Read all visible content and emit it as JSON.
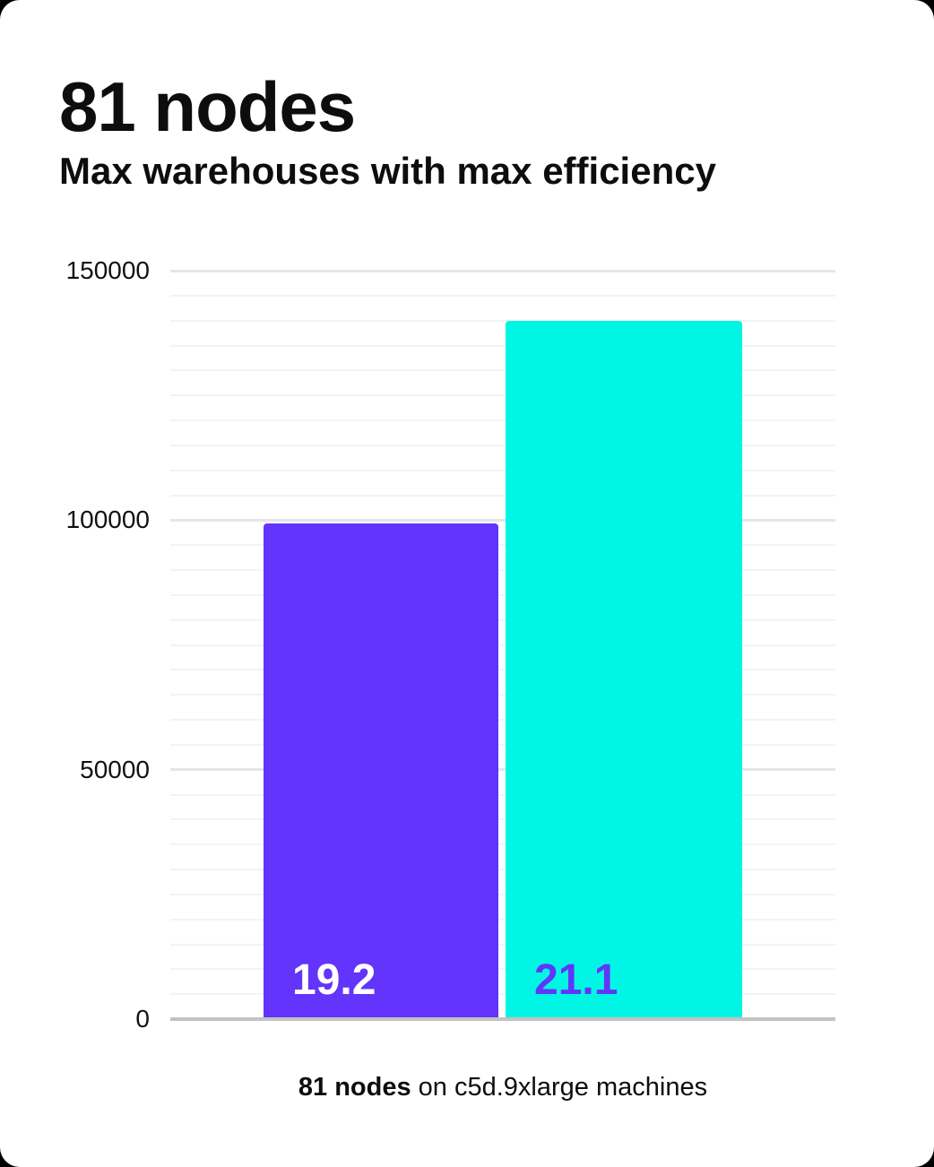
{
  "header": {
    "title": "81 nodes",
    "subtitle": "Max warehouses with max efficiency"
  },
  "caption": {
    "highlight": "81 nodes",
    "rest": " on c5d.9xlarge machines"
  },
  "chart_data": {
    "type": "bar",
    "title": "81 nodes",
    "subtitle": "Max warehouses with max efficiency",
    "categories": [
      "19.2",
      "21.1"
    ],
    "values": [
      99400,
      140000
    ],
    "bars": [
      {
        "label": "19.2",
        "value": 99400,
        "color": "#6334fb",
        "label_color": "#ffffff"
      },
      {
        "label": "21.1",
        "value": 140000,
        "color": "#00f6e4",
        "label_color": "#6334fb"
      }
    ],
    "xlabel": "",
    "ylabel": "",
    "ylim": [
      0,
      150000
    ],
    "yticks": [
      0,
      50000,
      100000,
      150000
    ],
    "ytick_labels": [
      "0",
      "50000",
      "100000",
      "150000"
    ],
    "minor_grid_step": 5000,
    "grid": "horizontal-minor-and-major",
    "legend": "none",
    "caption": "81 nodes on c5d.9xlarge machines"
  },
  "colors": {
    "background": "#000000",
    "card": "#ffffff",
    "text": "#0d0d0d",
    "bar_purple": "#6334fb",
    "bar_cyan": "#00f6e4",
    "axis": "#c3c3c3",
    "grid_minor": "#f3f3f3",
    "grid_major": "#e6e6e6"
  }
}
